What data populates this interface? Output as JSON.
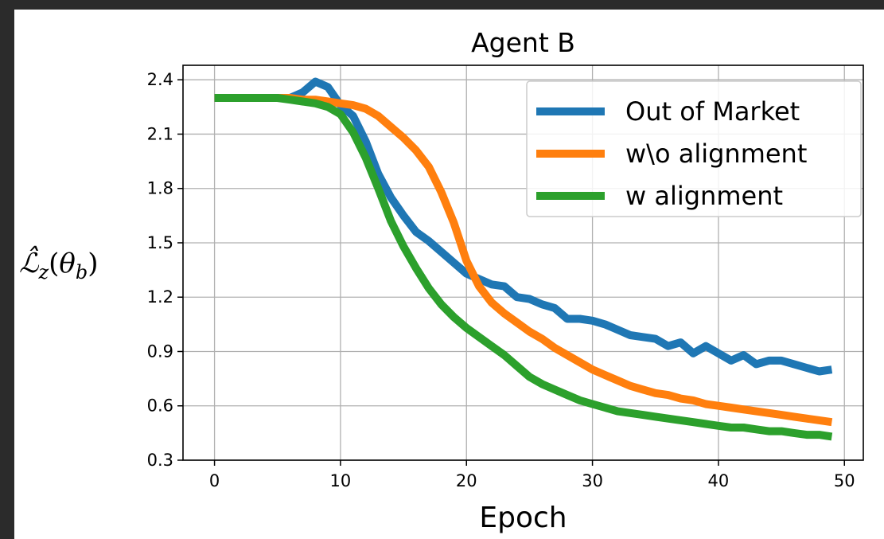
{
  "chart_data": {
    "type": "line",
    "title": "Agent B",
    "xlabel": "Epoch",
    "ylabel": "ℒ̂z(θb)",
    "xlim": [
      -2.5,
      51.5
    ],
    "ylim": [
      0.3,
      2.48
    ],
    "xticks": [
      0,
      10,
      20,
      30,
      40,
      50
    ],
    "yticks": [
      0.3,
      0.6,
      0.9,
      1.2,
      1.5,
      1.8,
      2.1,
      2.4
    ],
    "ytick_labels": [
      "0.3",
      "0.6",
      "0.9",
      "1.2",
      "1.5",
      "1.8",
      "2.1",
      "2.4"
    ],
    "grid": true,
    "legend_position": "top-right",
    "series": [
      {
        "name": "Out of Market",
        "color": "#1f77b4",
        "x": [
          0,
          1,
          2,
          3,
          4,
          5,
          6,
          7,
          8,
          9,
          10,
          11,
          12,
          13,
          14,
          15,
          16,
          17,
          18,
          19,
          20,
          21,
          22,
          23,
          24,
          25,
          26,
          27,
          28,
          29,
          30,
          31,
          32,
          33,
          34,
          35,
          36,
          37,
          38,
          39,
          40,
          41,
          42,
          43,
          44,
          45,
          46,
          47,
          48,
          49
        ],
        "values": [
          2.3,
          2.3,
          2.3,
          2.3,
          2.3,
          2.3,
          2.3,
          2.33,
          2.39,
          2.36,
          2.26,
          2.2,
          2.06,
          1.88,
          1.75,
          1.65,
          1.56,
          1.51,
          1.45,
          1.39,
          1.33,
          1.3,
          1.27,
          1.26,
          1.2,
          1.19,
          1.16,
          1.14,
          1.08,
          1.08,
          1.07,
          1.05,
          1.02,
          0.99,
          0.98,
          0.97,
          0.93,
          0.95,
          0.89,
          0.93,
          0.89,
          0.85,
          0.88,
          0.83,
          0.85,
          0.85,
          0.83,
          0.81,
          0.79,
          0.8
        ]
      },
      {
        "name": "w\\o alignment",
        "color": "#ff7f0e",
        "x": [
          0,
          1,
          2,
          3,
          4,
          5,
          6,
          7,
          8,
          9,
          10,
          11,
          12,
          13,
          14,
          15,
          16,
          17,
          18,
          19,
          20,
          21,
          22,
          23,
          24,
          25,
          26,
          27,
          28,
          29,
          30,
          31,
          32,
          33,
          34,
          35,
          36,
          37,
          38,
          39,
          40,
          41,
          42,
          43,
          44,
          45,
          46,
          47,
          48,
          49
        ],
        "values": [
          2.3,
          2.3,
          2.3,
          2.3,
          2.3,
          2.3,
          2.3,
          2.29,
          2.29,
          2.28,
          2.27,
          2.26,
          2.24,
          2.2,
          2.14,
          2.08,
          2.01,
          1.92,
          1.78,
          1.61,
          1.4,
          1.26,
          1.17,
          1.11,
          1.06,
          1.01,
          0.97,
          0.92,
          0.88,
          0.84,
          0.8,
          0.77,
          0.74,
          0.71,
          0.69,
          0.67,
          0.66,
          0.64,
          0.63,
          0.61,
          0.6,
          0.59,
          0.58,
          0.57,
          0.56,
          0.55,
          0.54,
          0.53,
          0.52,
          0.51
        ]
      },
      {
        "name": "w alignment",
        "color": "#2ca02c",
        "x": [
          0,
          1,
          2,
          3,
          4,
          5,
          6,
          7,
          8,
          9,
          10,
          11,
          12,
          13,
          14,
          15,
          16,
          17,
          18,
          19,
          20,
          21,
          22,
          23,
          24,
          25,
          26,
          27,
          28,
          29,
          30,
          31,
          32,
          33,
          34,
          35,
          36,
          37,
          38,
          39,
          40,
          41,
          42,
          43,
          44,
          45,
          46,
          47,
          48,
          49
        ],
        "values": [
          2.3,
          2.3,
          2.3,
          2.3,
          2.3,
          2.3,
          2.29,
          2.28,
          2.27,
          2.25,
          2.21,
          2.11,
          1.97,
          1.8,
          1.62,
          1.48,
          1.36,
          1.25,
          1.16,
          1.09,
          1.03,
          0.98,
          0.93,
          0.88,
          0.82,
          0.76,
          0.72,
          0.69,
          0.66,
          0.63,
          0.61,
          0.59,
          0.57,
          0.56,
          0.55,
          0.54,
          0.53,
          0.52,
          0.51,
          0.5,
          0.49,
          0.48,
          0.48,
          0.47,
          0.46,
          0.46,
          0.45,
          0.44,
          0.44,
          0.43
        ]
      }
    ]
  }
}
